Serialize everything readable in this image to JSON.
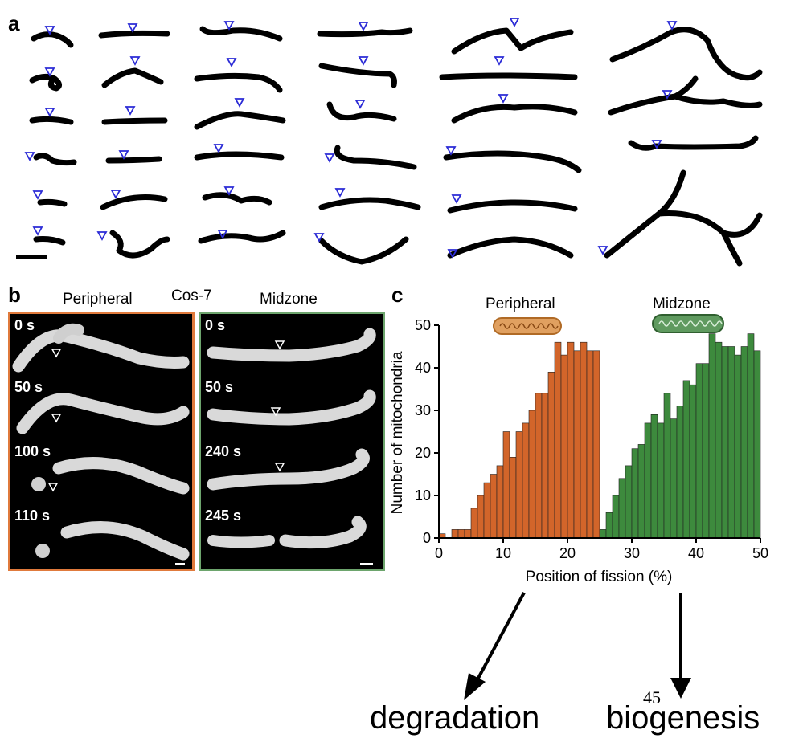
{
  "panel_a": {
    "letter": "a"
  },
  "panel_b": {
    "letter": "b",
    "cell_line": "Cos-7",
    "peripheral": {
      "title": "Peripheral",
      "frame_color": "#e07a3c",
      "times": [
        "0 s",
        "50 s",
        "100 s",
        "110 s"
      ]
    },
    "midzone": {
      "title": "Midzone",
      "frame_color": "#6da56d",
      "times": [
        "0 s",
        "50 s",
        "240 s",
        "245 s"
      ]
    }
  },
  "panel_c": {
    "letter": "c",
    "peripheral_label": "Peripheral",
    "midzone_label": "Midzone",
    "peripheral_icon": "mitochondrion-icon-orange",
    "midzone_icon": "mitochondrion-icon-green"
  },
  "chart_data": {
    "type": "bar",
    "xlabel": "Position of fission (%)",
    "ylabel": "Number of mitochondria",
    "xlim": [
      0,
      50
    ],
    "ylim": [
      0,
      50
    ],
    "xticks": [
      0,
      10,
      20,
      30,
      40,
      50
    ],
    "yticks": [
      0,
      10,
      20,
      30,
      40,
      50
    ],
    "bin_width": 1,
    "series": [
      {
        "name": "Peripheral",
        "color": "#d2652a",
        "x": [
          0,
          1,
          2,
          3,
          4,
          5,
          6,
          7,
          8,
          9,
          10,
          11,
          12,
          13,
          14,
          15,
          16,
          17,
          18,
          19,
          20,
          21,
          22,
          23,
          24
        ],
        "values": [
          1,
          0,
          2,
          2,
          2,
          7,
          10,
          13,
          15,
          17,
          25,
          19,
          25,
          27,
          30,
          34,
          34,
          39,
          46,
          43,
          46,
          44,
          46,
          44,
          44
        ]
      },
      {
        "name": "Midzone",
        "color": "#3d8a3d",
        "x": [
          25,
          26,
          27,
          28,
          29,
          30,
          31,
          32,
          33,
          34,
          35,
          36,
          37,
          38,
          39,
          40,
          41,
          42,
          43,
          44,
          45,
          46,
          47,
          48,
          49
        ],
        "values": [
          2,
          6,
          10,
          14,
          17,
          21,
          22,
          27,
          29,
          27,
          34,
          28,
          31,
          37,
          36,
          41,
          41,
          48,
          46,
          45,
          45,
          43,
          45,
          48,
          44
        ]
      }
    ]
  },
  "annotations": {
    "left_outcome": "degradation",
    "right_outcome": "biogenesis",
    "page_number": "45"
  }
}
